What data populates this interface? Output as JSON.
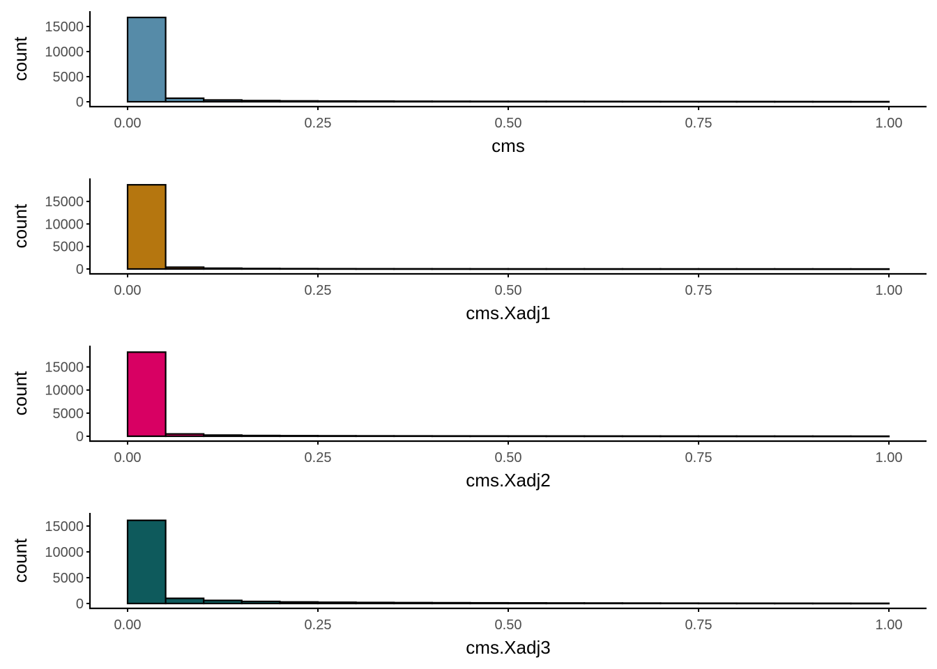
{
  "chart_data": [
    {
      "type": "bar",
      "subtype": "histogram",
      "xlabel": "cms",
      "ylabel": "count",
      "xlim": [
        -0.1,
        1.1
      ],
      "ylim": [
        0,
        17500
      ],
      "x_ticks": [
        "0.00",
        "0.25",
        "0.50",
        "0.75",
        "1.00"
      ],
      "y_ticks": [
        "0",
        "5000",
        "10000",
        "15000"
      ],
      "fill": "#568BA8",
      "bin_width": 0.05,
      "bins_start": [
        0.0,
        0.05,
        0.1,
        0.15,
        0.2,
        0.25,
        0.3,
        0.35,
        0.4,
        0.45,
        0.5,
        0.55,
        0.6,
        0.65,
        0.7,
        0.75,
        0.8,
        0.85,
        0.9,
        0.95
      ],
      "values": [
        16800,
        700,
        350,
        230,
        170,
        140,
        120,
        100,
        90,
        80,
        75,
        70,
        65,
        60,
        55,
        50,
        45,
        40,
        35,
        30
      ],
      "grid": false,
      "legend": "none"
    },
    {
      "type": "bar",
      "subtype": "histogram",
      "xlabel": "cms.Xadj1",
      "ylabel": "count",
      "xlim": [
        -0.1,
        1.1
      ],
      "ylim": [
        0,
        19500
      ],
      "x_ticks": [
        "0.00",
        "0.25",
        "0.50",
        "0.75",
        "1.00"
      ],
      "y_ticks": [
        "0",
        "5000",
        "10000",
        "15000"
      ],
      "fill": "#B5760F",
      "bin_width": 0.05,
      "bins_start": [
        0.0,
        0.05,
        0.1,
        0.15,
        0.2,
        0.25,
        0.3,
        0.35,
        0.4,
        0.45,
        0.5,
        0.55,
        0.6,
        0.65,
        0.7,
        0.75,
        0.8,
        0.85,
        0.9,
        0.95
      ],
      "values": [
        18700,
        400,
        180,
        110,
        80,
        60,
        50,
        45,
        40,
        35,
        30,
        28,
        26,
        24,
        22,
        20,
        18,
        16,
        14,
        12
      ],
      "grid": false,
      "legend": "none"
    },
    {
      "type": "bar",
      "subtype": "histogram",
      "xlabel": "cms.Xadj2",
      "ylabel": "count",
      "xlim": [
        -0.1,
        1.1
      ],
      "ylim": [
        0,
        19000
      ],
      "x_ticks": [
        "0.00",
        "0.25",
        "0.50",
        "0.75",
        "1.00"
      ],
      "y_ticks": [
        "0",
        "5000",
        "10000",
        "15000"
      ],
      "fill": "#D80063",
      "bin_width": 0.05,
      "bins_start": [
        0.0,
        0.05,
        0.1,
        0.15,
        0.2,
        0.25,
        0.3,
        0.35,
        0.4,
        0.45,
        0.5,
        0.55,
        0.6,
        0.65,
        0.7,
        0.75,
        0.8,
        0.85,
        0.9,
        0.95
      ],
      "values": [
        18200,
        500,
        250,
        160,
        120,
        100,
        85,
        75,
        65,
        60,
        55,
        50,
        45,
        40,
        36,
        32,
        28,
        24,
        20,
        16
      ],
      "grid": false,
      "legend": "none"
    },
    {
      "type": "bar",
      "subtype": "histogram",
      "xlabel": "cms.Xadj3",
      "ylabel": "count",
      "xlim": [
        -0.1,
        1.1
      ],
      "ylim": [
        0,
        17000
      ],
      "x_ticks": [
        "0.00",
        "0.25",
        "0.50",
        "0.75",
        "1.00"
      ],
      "y_ticks": [
        "0",
        "5000",
        "10000",
        "15000"
      ],
      "fill": "#0E5A5C",
      "bin_width": 0.05,
      "bins_start": [
        0.0,
        0.05,
        0.1,
        0.15,
        0.2,
        0.25,
        0.3,
        0.35,
        0.4,
        0.45,
        0.5,
        0.55,
        0.6,
        0.65,
        0.7,
        0.75,
        0.8,
        0.85,
        0.9,
        0.95
      ],
      "values": [
        16100,
        1000,
        600,
        400,
        300,
        240,
        200,
        170,
        150,
        130,
        115,
        100,
        90,
        80,
        70,
        60,
        55,
        50,
        45,
        40
      ],
      "grid": false,
      "legend": "none"
    }
  ]
}
